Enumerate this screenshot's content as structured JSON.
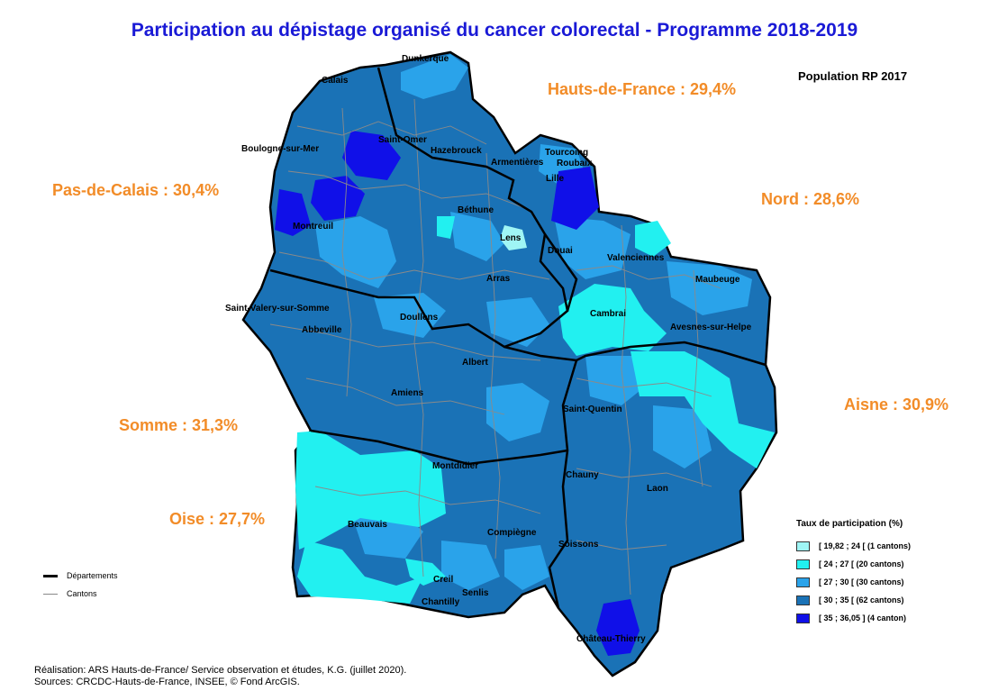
{
  "title": "Participation au dépistage organisé du cancer colorectal - Programme 2018-2019",
  "population_note": "Population RP 2017",
  "departments": [
    {
      "name": "Hauts-de-France : 29,4%"
    },
    {
      "name": "Pas-de-Calais : 30,4%"
    },
    {
      "name": "Nord : 28,6%"
    },
    {
      "name": "Aisne : 30,9%"
    },
    {
      "name": "Somme : 31,3%"
    },
    {
      "name": "Oise : 27,7%"
    }
  ],
  "cities": [
    "Dunkerque",
    "Calais",
    "Boulogne-sur-Mer",
    "Saint-Omer",
    "Hazebrouck",
    "Armentières",
    "Tourcoing",
    "Roubaix",
    "Lille",
    "Montreuil",
    "Béthune",
    "Lens",
    "Douai",
    "Valenciennes",
    "Arras",
    "Maubeuge",
    "Saint-Valery-sur-Somme",
    "Abbeville",
    "Doullens",
    "Cambrai",
    "Avesnes-sur-Helpe",
    "Albert",
    "Amiens",
    "Saint-Quentin",
    "Montdidier",
    "Chauny",
    "Laon",
    "Beauvais",
    "Compiègne",
    "Soissons",
    "Creil",
    "Senlis",
    "Chantilly",
    "Château-Thierry"
  ],
  "legend_lines": {
    "departements": "Départements",
    "cantons": "Cantons"
  },
  "legend_rates": {
    "title": "Taux de participation (%)",
    "classes": [
      {
        "label": "[ 19,82 ; 24 [ (1 cantons)",
        "color": "#9ff5f5"
      },
      {
        "label": "[ 24 ; 27 [ (20 cantons)",
        "color": "#22f0f0"
      },
      {
        "label": "[ 27 ; 30 [ (30 cantons)",
        "color": "#2aa3ea"
      },
      {
        "label": "[ 30 ; 35 [ (62 cantons)",
        "color": "#1a72b6"
      },
      {
        "label": "[ 35 ; 36,05 ] (4 canton)",
        "color": "#1010e8"
      }
    ]
  },
  "credits": {
    "line1": "Réalisation: ARS Hauts-de-France/ Service observation et études, K.G. (juillet 2020).",
    "line2": "Sources: CRCDC-Hauts-de-France, INSEE, © Fond ArcGIS."
  }
}
